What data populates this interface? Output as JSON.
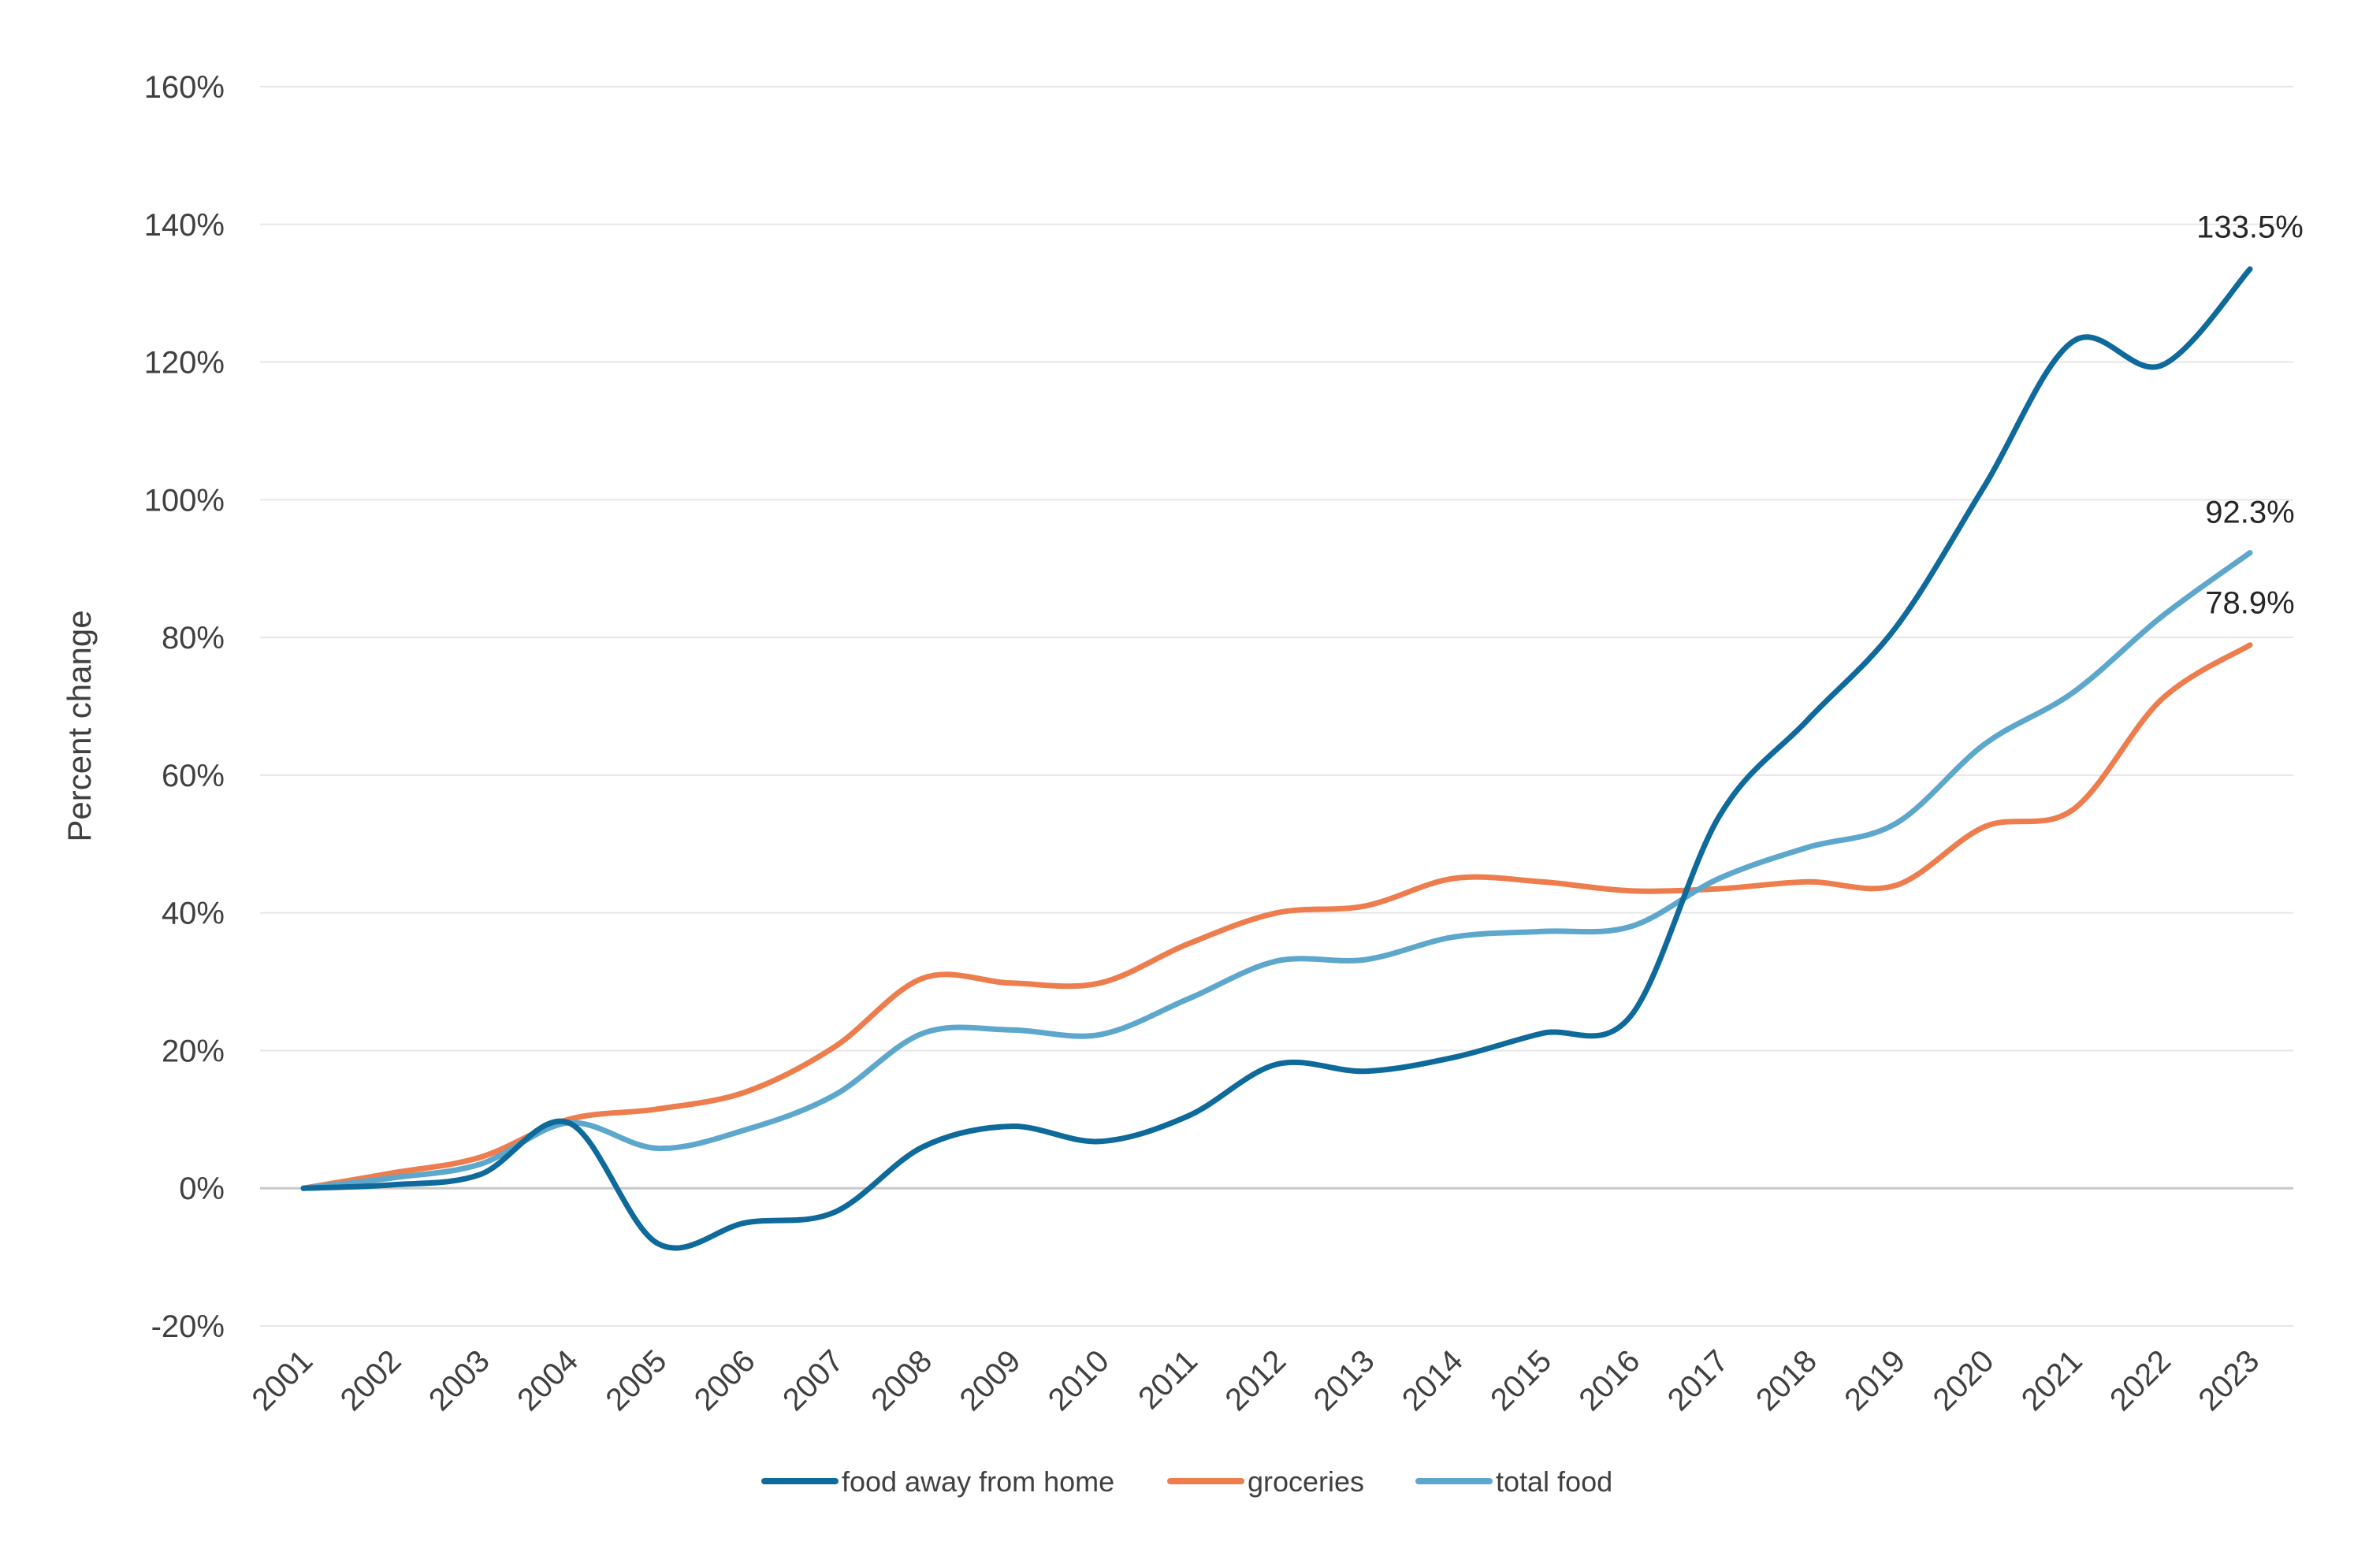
{
  "chart_data": {
    "type": "line",
    "title": "",
    "xlabel": "",
    "ylabel": "Percent change",
    "categories": [
      "2001",
      "2002",
      "2003",
      "2004",
      "2005",
      "2006",
      "2007",
      "2008",
      "2009",
      "2010",
      "2011",
      "2012",
      "2013",
      "2014",
      "2015",
      "2016",
      "2017",
      "2018",
      "2019",
      "2020",
      "2021",
      "2022",
      "2023"
    ],
    "ylim": [
      -20,
      160
    ],
    "yticks": [
      -20,
      0,
      20,
      40,
      60,
      80,
      100,
      120,
      140,
      160
    ],
    "ytick_labels": [
      "-20%",
      "0%",
      "20%",
      "40%",
      "60%",
      "80%",
      "100%",
      "120%",
      "140%",
      "160%"
    ],
    "grid": "horizontal",
    "legend_position": "bottom",
    "series": [
      {
        "name": "food away from home",
        "color": "#0E6A9A",
        "values": [
          0,
          0.5,
          2,
          9.5,
          -8,
          -5,
          -3.5,
          6,
          9,
          6.8,
          10.5,
          18,
          17,
          19,
          22.5,
          25,
          54,
          68,
          81.5,
          102,
          123,
          119.5,
          133.5
        ],
        "end_label": "133.5%"
      },
      {
        "name": "groceries",
        "color": "#EE7D4E",
        "values": [
          0,
          2.2,
          4.5,
          10,
          11.5,
          14,
          20.5,
          30.5,
          29.8,
          29.8,
          35.5,
          40,
          41,
          45,
          44.5,
          43.2,
          43.5,
          44.5,
          44,
          52.5,
          55,
          71,
          78.9
        ],
        "end_label": "78.9%"
      },
      {
        "name": "total food",
        "color": "#5DA7CD",
        "values": [
          0,
          1.5,
          3.5,
          9.5,
          5.8,
          8.5,
          13.5,
          22.5,
          23,
          22.3,
          27.5,
          33,
          33.2,
          36.5,
          37.3,
          38,
          45,
          49.5,
          53,
          64.5,
          72,
          83,
          92.3
        ],
        "end_label": "92.3%"
      }
    ]
  }
}
